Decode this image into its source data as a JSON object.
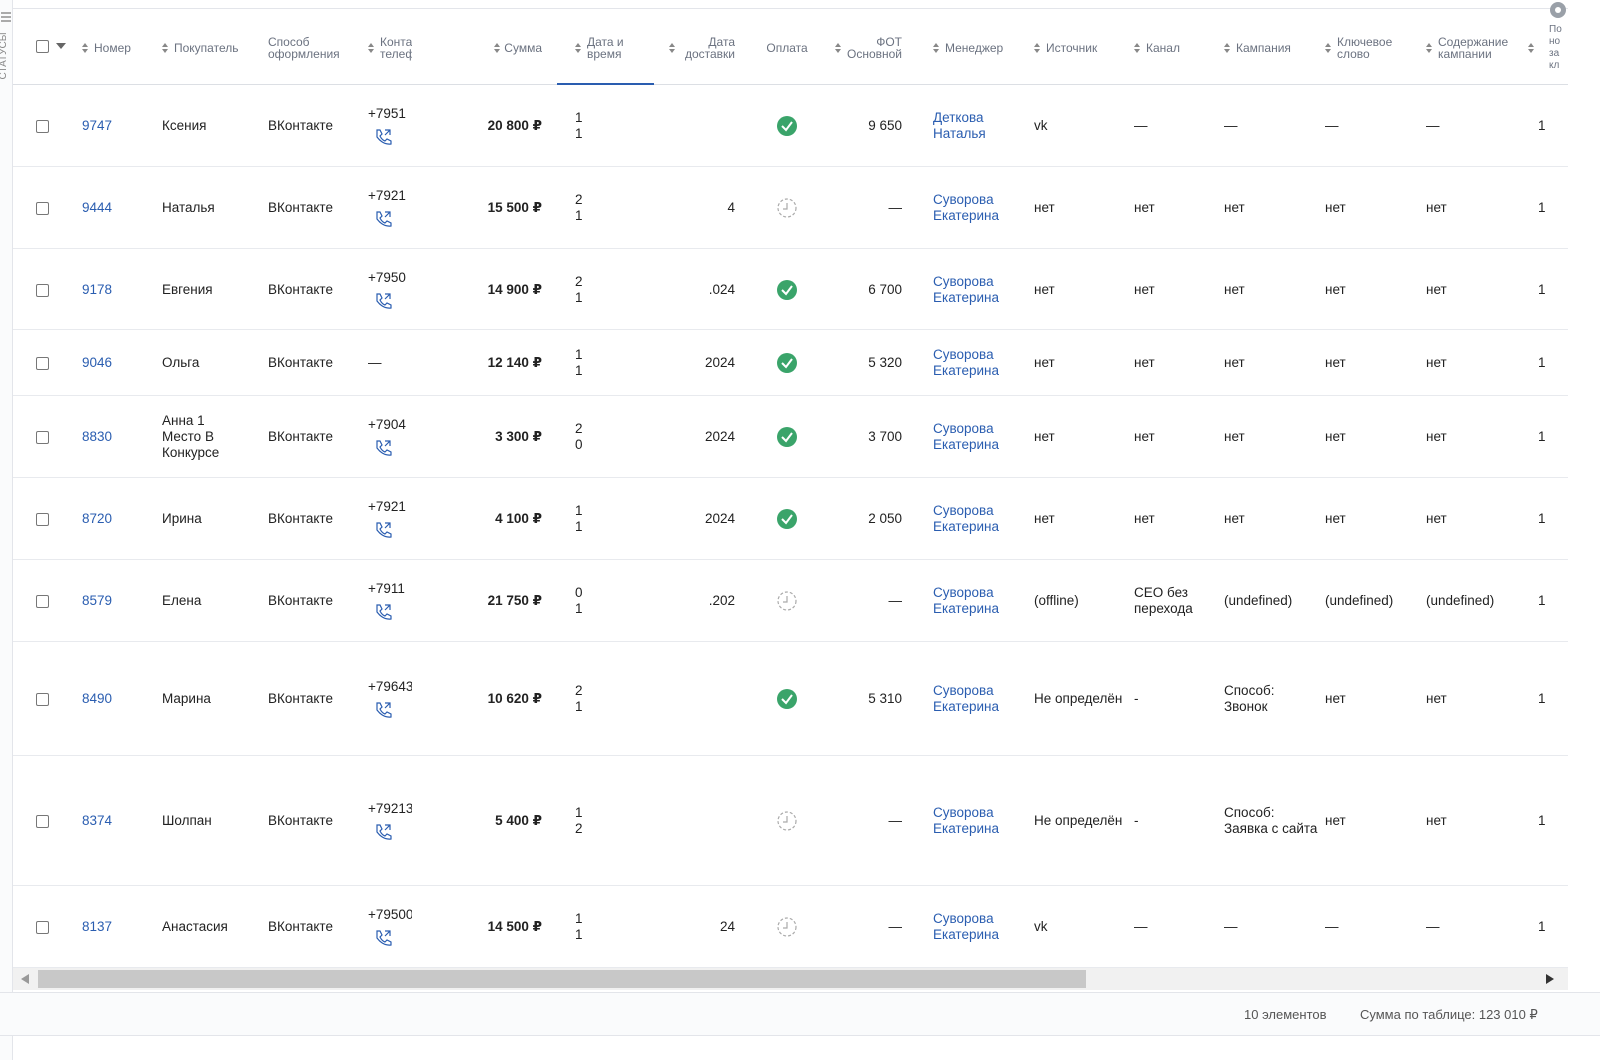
{
  "sidebar": {
    "label": "СТАТУСЫ"
  },
  "table": {
    "headers": [
      "Номер",
      "Покупатель",
      "Способ оформления",
      "Контактный телефон",
      "Сумма",
      "Дата и время",
      "Дата доставки",
      "Оплата",
      "ФОТ Основной",
      "Менеджер",
      "Источник",
      "Канал",
      "Кампания",
      "Ключевое слово",
      "Содержание кампании",
      "По но за кл"
    ],
    "rows": [
      {
        "number": "9747",
        "buyer": "Ксения",
        "method": "ВКонтакте",
        "phone": "+7951",
        "sum": "20 800 ₽",
        "date": [
          "1",
          "1"
        ],
        "delivery": null,
        "paid": true,
        "fot": "9 650",
        "manager": "Деткова Наталья",
        "source": "vk",
        "channel": "—",
        "campaign": "—",
        "keyword": "—",
        "content": "—",
        "last": "1"
      },
      {
        "number": "9444",
        "buyer": "Наталья",
        "method": "ВКонтакте",
        "phone": "+7921",
        "sum": "15 500 ₽",
        "date": [
          "2",
          "1"
        ],
        "delivery": "4",
        "paid": false,
        "fot": "—",
        "manager": "Суворова Екатерина",
        "source": "нет",
        "channel": "нет",
        "campaign": "нет",
        "keyword": "нет",
        "content": "нет",
        "last": "1"
      },
      {
        "number": "9178",
        "buyer": "Евгения",
        "method": "ВКонтакте",
        "phone": "+7950",
        "sum": "14 900 ₽",
        "date": [
          "2",
          "1"
        ],
        "delivery": ".024",
        "paid": true,
        "fot": "6 700",
        "manager": "Суворова Екатерина",
        "source": "нет",
        "channel": "нет",
        "campaign": "нет",
        "keyword": "нет",
        "content": "нет",
        "last": "1"
      },
      {
        "number": "9046",
        "buyer": "Ольга",
        "method": "ВКонтакте",
        "phone": "—",
        "sum": "12 140 ₽",
        "date": [
          "1",
          "1"
        ],
        "delivery": "2024",
        "paid": true,
        "fot": "5 320",
        "manager": "Суворова Екатерина",
        "source": "нет",
        "channel": "нет",
        "campaign": "нет",
        "keyword": "нет",
        "content": "нет",
        "last": "1"
      },
      {
        "number": "8830",
        "buyer": "Анна 1 Место В Конкурсе",
        "method": "ВКонтакте",
        "phone": "+7904",
        "sum": "3 300 ₽",
        "date": [
          "2",
          "0"
        ],
        "delivery": "2024",
        "paid": true,
        "fot": "3 700",
        "manager": "Суворова Екатерина",
        "source": "нет",
        "channel": "нет",
        "campaign": "нет",
        "keyword": "нет",
        "content": "нет",
        "last": "1"
      },
      {
        "number": "8720",
        "buyer": "Ирина",
        "method": "ВКонтакте",
        "phone": "+7921",
        "sum": "4 100 ₽",
        "date": [
          "1",
          "1"
        ],
        "delivery": "2024",
        "paid": true,
        "fot": "2 050",
        "manager": "Суворова Екатерина",
        "source": "нет",
        "channel": "нет",
        "campaign": "нет",
        "keyword": "нет",
        "content": "нет",
        "last": "1"
      },
      {
        "number": "8579",
        "buyer": "Елена",
        "method": "ВКонтакте",
        "phone": "+7911",
        "sum": "21 750 ₽",
        "date": [
          "0",
          "1"
        ],
        "delivery": ".202",
        "paid": false,
        "fot": "—",
        "manager": "Суворова Екатерина",
        "source": "(offline)",
        "channel": "СЕО без перехода",
        "campaign": "(undefined)",
        "keyword": "(undefined)",
        "content": "(undefined)",
        "last": "1"
      },
      {
        "number": "8490",
        "buyer": "Марина",
        "method": "ВКонтакте",
        "phone": "+79643",
        "sum": "10 620 ₽",
        "date": [
          "2",
          "1"
        ],
        "delivery": null,
        "paid": true,
        "fot": "5 310",
        "manager": "Суворова Екатерина",
        "source": "Не определён",
        "channel": "-",
        "campaign": "Способ: Звонок",
        "keyword": "нет",
        "content": "нет",
        "last": "1"
      },
      {
        "number": "8374",
        "buyer": "Шолпан",
        "method": "ВКонтакте",
        "phone": "+79213",
        "sum": "5 400 ₽",
        "date": [
          "1",
          "2"
        ],
        "delivery": null,
        "paid": false,
        "fot": "—",
        "manager": "Суворова Екатерина",
        "source": "Не определён",
        "channel": "-",
        "campaign": "Способ: Заявка с сайта",
        "keyword": "нет",
        "content": "нет",
        "last": "1"
      },
      {
        "number": "8137",
        "buyer": "Анастасия",
        "method": "ВКонтакте",
        "phone": "+79500",
        "sum": "14 500 ₽",
        "date": [
          "1",
          "1"
        ],
        "delivery": "24",
        "paid": false,
        "fot": "—",
        "manager": "Суворова Екатерина",
        "source": "vk",
        "channel": "—",
        "campaign": "—",
        "keyword": "—",
        "content": "—",
        "last": "1"
      }
    ]
  },
  "footer": {
    "count": "10 элементов",
    "total": "Сумма по таблице: 123 010 ₽"
  }
}
